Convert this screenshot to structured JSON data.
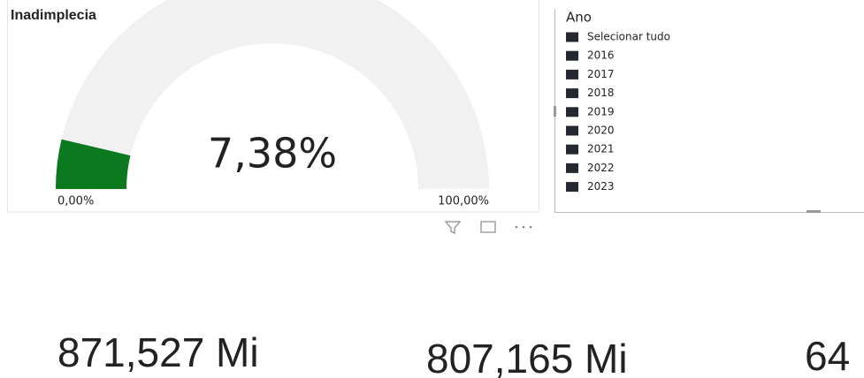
{
  "chart_data": {
    "type": "gauge",
    "title": "Inadimplecia",
    "values": [
      7.38
    ],
    "value_labels": [
      "7,38%"
    ],
    "color": "#0b7a1e",
    "track_color": "#f1f1f1",
    "ylim": [
      0,
      100
    ],
    "yticks": [
      {
        "value": 0,
        "label": "0,00%"
      },
      {
        "value": 100,
        "label": "100,00%"
      }
    ]
  },
  "slicer": {
    "title": "Ano",
    "items": [
      "Selecionar tudo",
      "2016",
      "2017",
      "2018",
      "2019",
      "2020",
      "2021",
      "2022",
      "2023"
    ]
  },
  "cards": [
    "871,527 Mi",
    "807,165 Mi",
    "64"
  ]
}
